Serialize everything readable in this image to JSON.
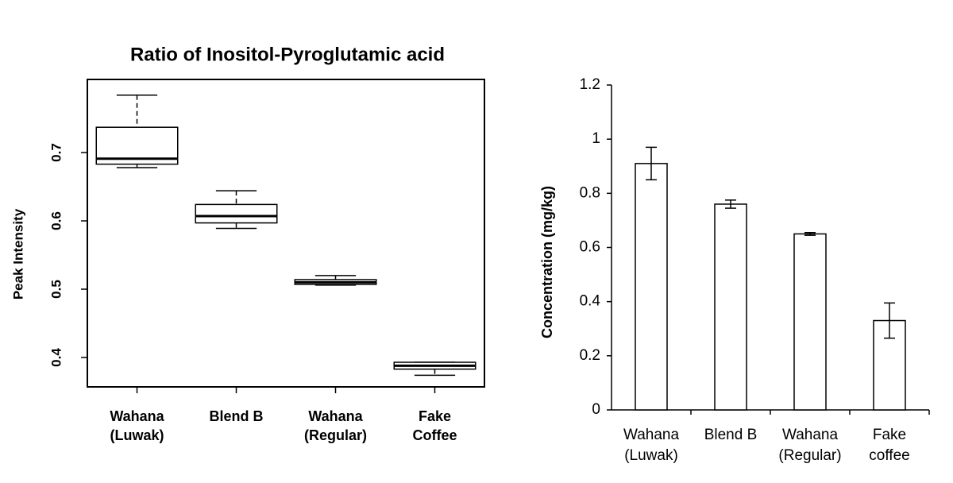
{
  "chart_data": [
    {
      "type": "box",
      "title": "Ratio of Inositol-Pyroglutamic acid",
      "y_label": "Peak Intensity",
      "categories": [
        "Wahana\n(Luwak)",
        "Blend B",
        "Wahana\n(Regular)",
        "Fake\nCoffee"
      ],
      "min": [
        0.678,
        0.589,
        0.506,
        0.374
      ],
      "q1": [
        0.683,
        0.597,
        0.507,
        0.383
      ],
      "median": [
        0.691,
        0.607,
        0.51,
        0.388
      ],
      "q3": [
        0.737,
        0.624,
        0.514,
        0.393
      ],
      "max": [
        0.784,
        0.644,
        0.52,
        0.393
      ],
      "ylim": [
        0.357,
        0.807
      ],
      "yticks": [
        0.4,
        0.5,
        0.6,
        0.7
      ],
      "color": "#ffffff"
    },
    {
      "type": "bar",
      "y_label": "Concentration (mg/kg)",
      "categories": [
        "Wahana\n(Luwak)",
        "Blend B",
        "Wahana\n(Regular)",
        "Fake\ncoffee"
      ],
      "values": [
        0.91,
        0.76,
        0.65,
        0.33
      ],
      "errors": [
        0.06,
        0.015,
        0.005,
        0.065
      ],
      "ylim": [
        0,
        1.2
      ],
      "yticks": [
        0,
        0.2,
        0.4,
        0.6,
        0.8,
        1,
        1.2
      ],
      "color": "#ffffff"
    }
  ]
}
